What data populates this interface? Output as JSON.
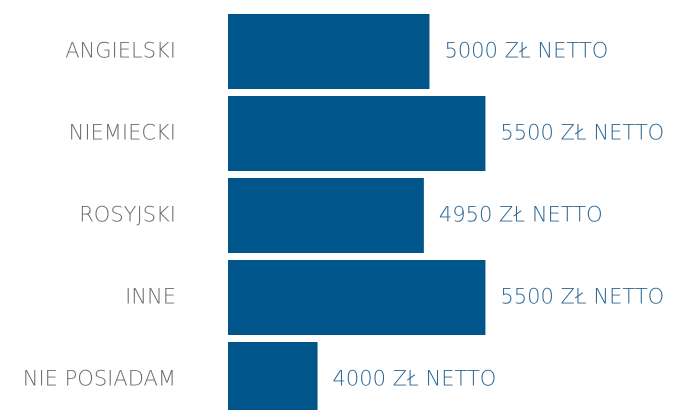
{
  "chart_data": {
    "type": "hbar",
    "categories": [
      "ANGIELSKI",
      "NIEMIECKI",
      "ROSYJSKI",
      "INNE",
      "NIE POSIADAM"
    ],
    "values": [
      5000,
      5500,
      4950,
      5500,
      4000
    ],
    "value_labels": [
      "5000 ZŁ NETTO",
      "5500 ZŁ NETTO",
      "4950 ZŁ NETTO",
      "5500 ZŁ NETTO",
      "4000 ZŁ NETTO"
    ],
    "color": "#00568b",
    "xlim": [
      3200,
      5800
    ]
  }
}
